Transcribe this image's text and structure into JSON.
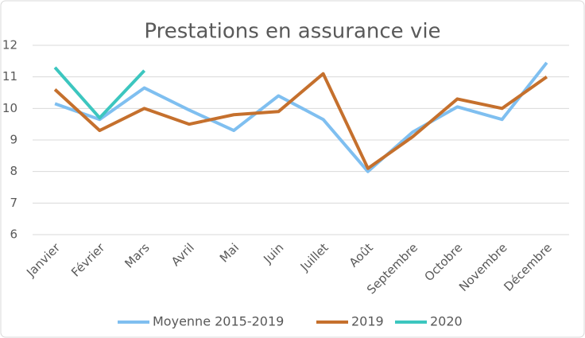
{
  "chart_data": {
    "type": "line",
    "title": "Prestations en assurance vie",
    "categories": [
      "Janvier",
      "Février",
      "Mars",
      "Avril",
      "Mai",
      "Juin",
      "Juillet",
      "Août",
      "Septembre",
      "Octobre",
      "Novembre",
      "Décembre"
    ],
    "series": [
      {
        "name": "Moyenne 2015-2019",
        "color": "#7fbff0",
        "values": [
          10.15,
          9.65,
          10.65,
          9.95,
          9.3,
          10.4,
          9.65,
          8.0,
          9.25,
          10.05,
          9.65,
          11.45
        ]
      },
      {
        "name": "2019",
        "color": "#c5702d",
        "values": [
          10.6,
          9.3,
          10.0,
          9.5,
          9.8,
          9.9,
          11.1,
          8.1,
          9.1,
          10.3,
          10.0,
          11.0
        ]
      },
      {
        "name": "2020",
        "color": "#3cc6bf",
        "values": [
          11.3,
          9.7,
          11.2,
          null,
          null,
          null,
          null,
          null,
          null,
          null,
          null,
          null
        ]
      }
    ],
    "ylim": [
      6,
      12
    ],
    "yticks": [
      6,
      7,
      8,
      9,
      10,
      11,
      12
    ],
    "grid": true,
    "legend": "bottom"
  }
}
